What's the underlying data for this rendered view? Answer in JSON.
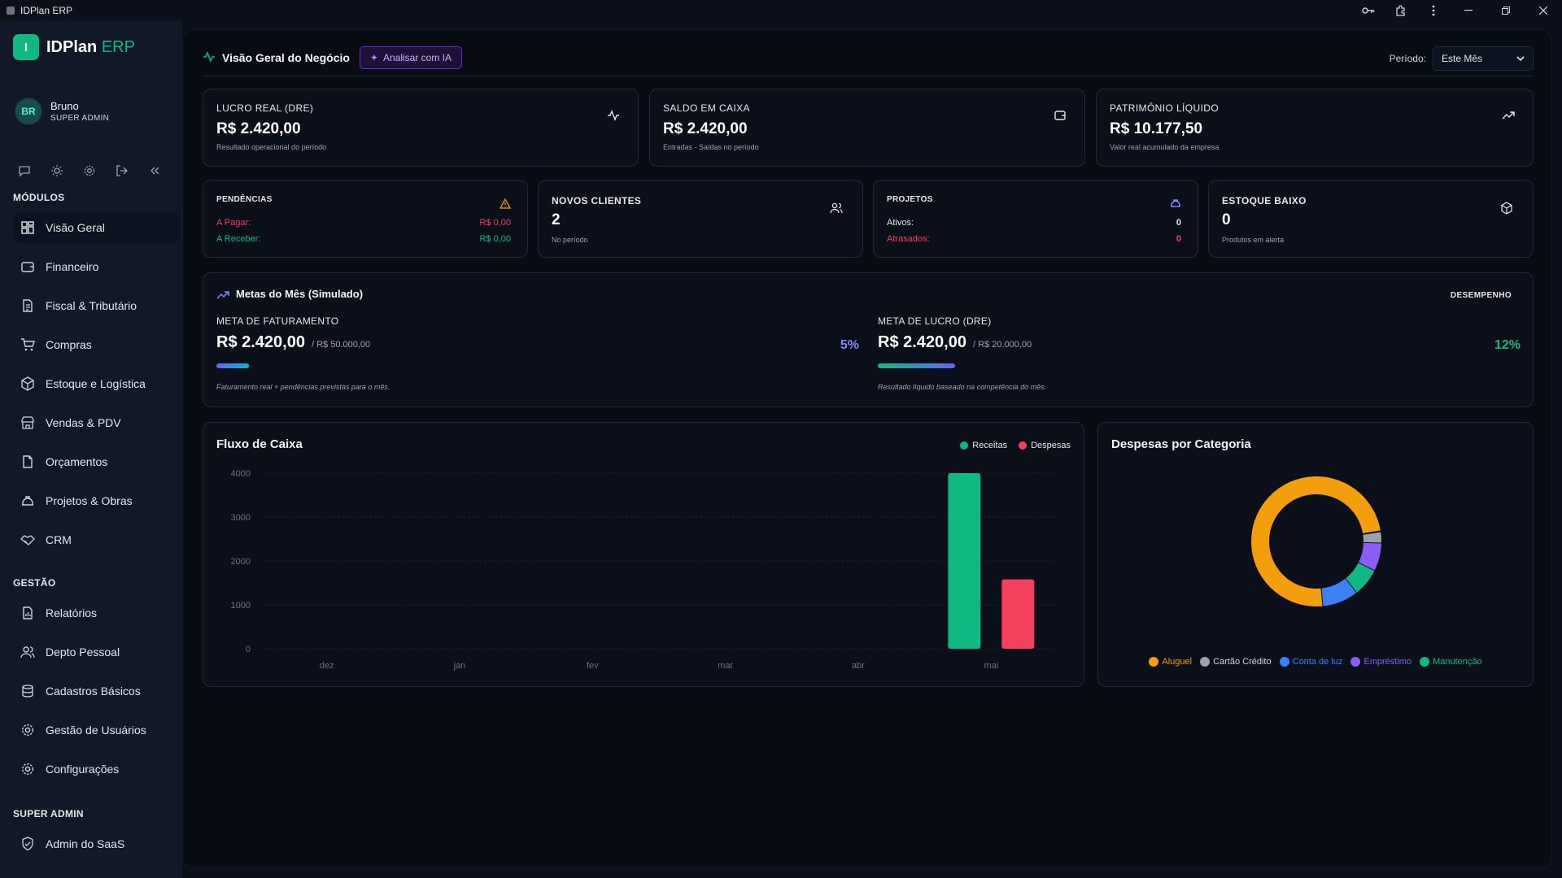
{
  "window": {
    "title": "IDPlan ERP"
  },
  "sidebar": {
    "logo_letter": "I",
    "logo_name": "IDPlan",
    "logo_suffix": "ERP",
    "user": {
      "initials": "BR",
      "name": "Bruno",
      "role": "SUPER ADMIN"
    },
    "sections": {
      "modulos": "MÓDULOS",
      "gestao": "GESTÃO",
      "superadmin": "SUPER ADMIN"
    },
    "modulos": [
      {
        "label": "Visão Geral",
        "icon": "grid-icon"
      },
      {
        "label": "Financeiro",
        "icon": "wallet-icon"
      },
      {
        "label": "Fiscal & Tributário",
        "icon": "document-icon"
      },
      {
        "label": "Compras",
        "icon": "cart-icon"
      },
      {
        "label": "Estoque e Logística",
        "icon": "package-icon"
      },
      {
        "label": "Vendas & PDV",
        "icon": "store-icon"
      },
      {
        "label": "Orçamentos",
        "icon": "file-icon"
      },
      {
        "label": "Projetos & Obras",
        "icon": "hardhat-icon"
      },
      {
        "label": "CRM",
        "icon": "handshake-icon"
      }
    ],
    "gestao": [
      {
        "label": "Relatórios",
        "icon": "report-icon"
      },
      {
        "label": "Depto Pessoal",
        "icon": "users-icon"
      },
      {
        "label": "Cadastros Básicos",
        "icon": "database-icon"
      },
      {
        "label": "Gestão de Usuários",
        "icon": "gear-icon"
      },
      {
        "label": "Configurações",
        "icon": "settings-icon"
      }
    ],
    "superadmin": [
      {
        "label": "Admin do SaaS",
        "icon": "shield-icon"
      }
    ]
  },
  "header": {
    "title": "Visão Geral do Negócio",
    "ai_button": "Analisar com IA",
    "period_label": "Período:",
    "period_value": "Este Mês"
  },
  "kpis": [
    {
      "label": "LUCRO REAL (DRE)",
      "value": "R$ 2.420,00",
      "sub": "Resultado operacional do período",
      "icon": "activity-icon"
    },
    {
      "label": "SALDO EM CAIXA",
      "value": "R$ 2.420,00",
      "sub": "Entradas - Saídas no período",
      "icon": "wallet-icon"
    },
    {
      "label": "PATRIMÔNIO LÍQUIDO",
      "value": "R$ 10.177,50",
      "sub": "Valor real acumulado da empresa",
      "icon": "trending-up-icon"
    }
  ],
  "stats": {
    "pendencias": {
      "label": "PENDÊNCIAS",
      "pagar_label": "A Pagar:",
      "pagar_value": "R$ 0,00",
      "receber_label": "A Receber:",
      "receber_value": "R$ 0,00"
    },
    "clientes": {
      "label": "NOVOS CLIENTES",
      "value": "2",
      "sub": "No período"
    },
    "projetos": {
      "label": "PROJETOS",
      "ativos_label": "Ativos:",
      "ativos_value": "0",
      "atrasados_label": "Atrasados:",
      "atrasados_value": "0"
    },
    "estoque": {
      "label": "ESTOQUE BAIXO",
      "value": "0",
      "sub": "Produtos em alerta"
    }
  },
  "metas": {
    "title": "Metas do Mês (Simulado)",
    "badge": "DESEMPENHO",
    "faturamento": {
      "label": "META DE FATURAMENTO",
      "value": "R$ 2.420,00",
      "target": "/ R$ 50.000,00",
      "pct": "5%",
      "progress": 0.05,
      "note": "Faturamento real + pendências previstas para o mês."
    },
    "lucro": {
      "label": "META DE LUCRO (DRE)",
      "value": "R$ 2.420,00",
      "target": "/ R$ 20.000,00",
      "pct": "12%",
      "progress": 0.12,
      "note": "Resultado líquido baseado na competência do mês."
    }
  },
  "fluxo": {
    "title": "Fluxo de Caixa",
    "colors": {
      "receitas": "#10b981",
      "despesas": "#f43f5e"
    }
  },
  "despesas": {
    "title": "Despesas por Categoria"
  },
  "chart_data": [
    {
      "type": "bar",
      "title": "Fluxo de Caixa",
      "categories": [
        "dez",
        "jan",
        "fev",
        "mar",
        "abr",
        "mai"
      ],
      "series": [
        {
          "name": "Receitas",
          "values": [
            0,
            0,
            0,
            0,
            0,
            4000
          ],
          "color": "#10b981"
        },
        {
          "name": "Despesas",
          "values": [
            0,
            0,
            0,
            0,
            0,
            1580
          ],
          "color": "#f43f5e"
        }
      ],
      "ylim": [
        0,
        4000
      ],
      "yticks": [
        0,
        1000,
        2000,
        3000,
        4000
      ],
      "grid": true,
      "legend": "top-right"
    },
    {
      "type": "pie",
      "title": "Despesas por Categoria",
      "donut": true,
      "labels": [
        "Aluguel",
        "Cartão Crédito",
        "Conta de luz",
        "Empréstimo",
        "Manutenção"
      ],
      "values": [
        74,
        3,
        9,
        7,
        7
      ],
      "colors": [
        "#f59e0b",
        "#9ca3af",
        "#3b82f6",
        "#8b5cf6",
        "#10b981"
      ],
      "legend": "bottom"
    }
  ]
}
